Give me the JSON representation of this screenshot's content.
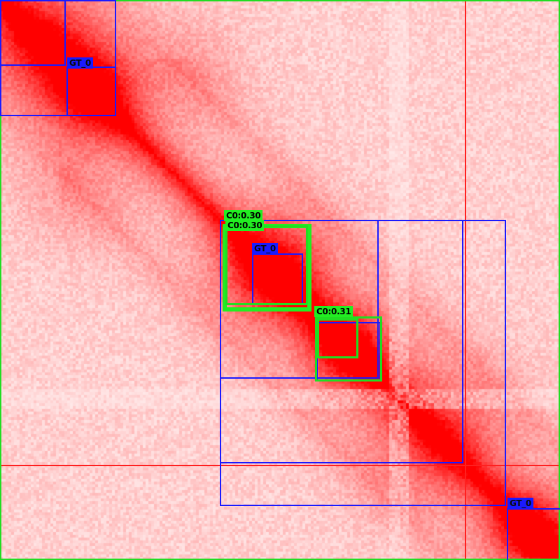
{
  "colors": {
    "heat_high": "#ff0000",
    "heat_low": "#fde9e9",
    "ground_truth": "#1a1aff",
    "prediction": "#22ee22"
  },
  "labels": {
    "gt": "GT_0",
    "pred_a": "C0:0.30",
    "pred_b": "C0:0.31"
  }
}
